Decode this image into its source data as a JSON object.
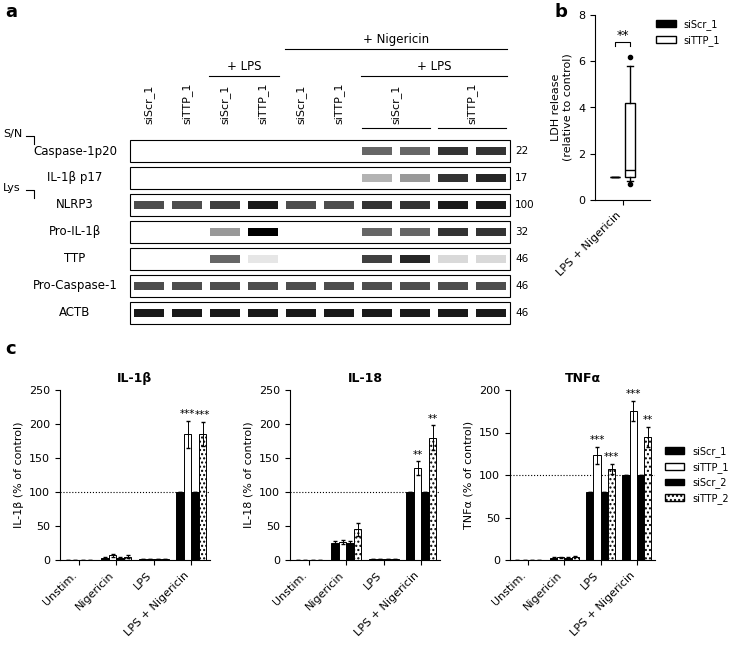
{
  "panel_labels": [
    "a",
    "b",
    "c"
  ],
  "blot": {
    "lane_labels": [
      {
        "text": "siScr_1",
        "lanes": [
          0
        ]
      },
      {
        "text": "siTTP_1",
        "lanes": [
          1
        ]
      },
      {
        "text": "siScr_1",
        "lanes": [
          2
        ]
      },
      {
        "text": "siTTP_1",
        "lanes": [
          3
        ]
      },
      {
        "text": "siScr_1",
        "lanes": [
          4
        ]
      },
      {
        "text": "siTTP_1",
        "lanes": [
          5
        ]
      },
      {
        "text": "siScr_1",
        "lanes": [
          6,
          7
        ]
      },
      {
        "text": "siTTP_1",
        "lanes": [
          8,
          9
        ]
      }
    ],
    "groups": [
      {
        "text": "+ LPS",
        "lanes": [
          2,
          3
        ]
      },
      {
        "text": "+ Nigericin",
        "lanes": [
          4,
          9
        ]
      },
      {
        "text": "+ LPS",
        "lanes": [
          6,
          9
        ]
      }
    ],
    "rows": [
      {
        "label": "Caspase-1p20",
        "size": 22,
        "section": "S/N",
        "bands": [
          0,
          0,
          0,
          0,
          0,
          0,
          0.6,
          0.6,
          0.8,
          0.8
        ]
      },
      {
        "label": "IL-1β p17",
        "size": 17,
        "section": "S/N",
        "bands": [
          0,
          0,
          0,
          0,
          0,
          0,
          0.3,
          0.4,
          0.8,
          0.85
        ]
      },
      {
        "label": "NLRP3",
        "size": 100,
        "section": "Lys",
        "bands": [
          0.7,
          0.7,
          0.75,
          0.9,
          0.7,
          0.7,
          0.8,
          0.8,
          0.9,
          0.9
        ]
      },
      {
        "label": "Pro-IL-1β",
        "size": 32,
        "section": "Lys",
        "bands": [
          0,
          0,
          0.4,
          1.0,
          0,
          0,
          0.6,
          0.6,
          0.8,
          0.8
        ]
      },
      {
        "label": "TTP",
        "size": 46,
        "section": "Lys",
        "bands": [
          0,
          0,
          0.6,
          0.1,
          0,
          0,
          0.75,
          0.85,
          0.15,
          0.15
        ]
      },
      {
        "label": "Pro-Caspase-1",
        "size": 46,
        "section": "Lys",
        "bands": [
          0.7,
          0.7,
          0.7,
          0.7,
          0.7,
          0.7,
          0.7,
          0.7,
          0.7,
          0.7
        ]
      },
      {
        "label": "ACTB",
        "size": 46,
        "section": "Lys",
        "bands": [
          0.9,
          0.9,
          0.9,
          0.9,
          0.9,
          0.9,
          0.9,
          0.9,
          0.9,
          0.9
        ]
      }
    ]
  },
  "chart_data": [
    {
      "type": "box",
      "categories": [
        "LPS + Nigericin"
      ],
      "y_label": "LDH release\n(relative to control)",
      "ylim": [
        0,
        8
      ],
      "yticks": [
        0,
        2,
        4,
        6,
        8
      ],
      "legend": "upper right",
      "series": [
        {
          "name": "siScr_1",
          "color": "#000000",
          "stats": {
            "whislo": 1,
            "q1": 1,
            "med": 1,
            "q3": 1,
            "whishi": 1,
            "fliers": []
          }
        },
        {
          "name": "siTTP_1",
          "color": "#ffffff",
          "stats": {
            "whislo": 0.8,
            "q1": 1.0,
            "med": 1.3,
            "q3": 4.2,
            "whishi": 5.8,
            "fliers": [
              6.2,
              0.7
            ]
          }
        }
      ],
      "annotations": [
        {
          "text": "**",
          "between": [
            "siScr_1",
            "siTTP_1"
          ]
        }
      ]
    },
    {
      "type": "bar",
      "title": "IL-1β",
      "y_label": "IL-1β (% of control)",
      "categories": [
        "Unstim.",
        "Nigericin",
        "LPS",
        "LPS + Nigericin"
      ],
      "ylim": [
        0,
        250
      ],
      "yticks": [
        0,
        50,
        100,
        150,
        200,
        250
      ],
      "reference_line": 100,
      "series": [
        {
          "name": "siScr_1",
          "color": "#000000",
          "values": [
            0,
            3,
            1,
            100
          ],
          "errors": [
            0,
            1,
            0,
            0
          ]
        },
        {
          "name": "siTTP_1",
          "color": "#ffffff",
          "values": [
            0,
            7,
            1,
            185
          ],
          "errors": [
            0,
            2,
            0,
            20
          ]
        },
        {
          "name": "siScr_2",
          "color": "#000000",
          "values": [
            0,
            3,
            1,
            100
          ],
          "errors": [
            0,
            1,
            0,
            0
          ]
        },
        {
          "name": "siTTP_2",
          "color": "#ffffff",
          "line_style": "dotted",
          "values": [
            0,
            5,
            1,
            185
          ],
          "errors": [
            0,
            2,
            0,
            18
          ]
        }
      ],
      "annotations": [
        {
          "category": "LPS + Nigericin",
          "series": "siTTP_1",
          "text": "***"
        },
        {
          "category": "LPS + Nigericin",
          "series": "siTTP_2",
          "text": "***"
        }
      ]
    },
    {
      "type": "bar",
      "title": "IL-18",
      "y_label": "IL-18 (% of control)",
      "categories": [
        "Unstim.",
        "Nigericin",
        "LPS",
        "LPS + Nigericin"
      ],
      "ylim": [
        0,
        250
      ],
      "yticks": [
        0,
        50,
        100,
        150,
        200,
        250
      ],
      "reference_line": 100,
      "series": [
        {
          "name": "siScr_1",
          "color": "#000000",
          "values": [
            0,
            25,
            1,
            100
          ],
          "errors": [
            0,
            3,
            0,
            0
          ]
        },
        {
          "name": "siTTP_1",
          "color": "#ffffff",
          "values": [
            0,
            27,
            1,
            135
          ],
          "errors": [
            0,
            3,
            0,
            10
          ]
        },
        {
          "name": "siScr_2",
          "color": "#000000",
          "values": [
            0,
            25,
            1,
            100
          ],
          "errors": [
            0,
            3,
            0,
            0
          ]
        },
        {
          "name": "siTTP_2",
          "color": "#ffffff",
          "line_style": "dotted",
          "values": [
            0,
            45,
            1,
            180
          ],
          "errors": [
            0,
            10,
            0,
            18
          ]
        }
      ],
      "annotations": [
        {
          "category": "LPS + Nigericin",
          "series": "siTTP_1",
          "text": "**"
        },
        {
          "category": "LPS + Nigericin",
          "series": "siTTP_2",
          "text": "**"
        }
      ]
    },
    {
      "type": "bar",
      "title": "TNFα",
      "y_label": "TNFα (% of control)",
      "categories": [
        "Unstim.",
        "Nigericin",
        "LPS",
        "LPS + Nigericin"
      ],
      "ylim": [
        0,
        200
      ],
      "yticks": [
        0,
        50,
        100,
        150,
        200
      ],
      "reference_line": 100,
      "legend": "right",
      "series": [
        {
          "name": "siScr_1",
          "color": "#000000",
          "values": [
            0,
            2,
            80,
            100
          ],
          "errors": [
            0,
            1,
            0,
            0
          ]
        },
        {
          "name": "siTTP_1",
          "color": "#ffffff",
          "values": [
            0,
            3,
            123,
            175
          ],
          "errors": [
            0,
            1,
            10,
            12
          ]
        },
        {
          "name": "siScr_2",
          "color": "#000000",
          "values": [
            0,
            2,
            80,
            100
          ],
          "errors": [
            0,
            1,
            0,
            0
          ]
        },
        {
          "name": "siTTP_2",
          "color": "#ffffff",
          "line_style": "dotted",
          "values": [
            0,
            4,
            107,
            145
          ],
          "errors": [
            0,
            1,
            6,
            12
          ]
        }
      ],
      "annotations": [
        {
          "category": "LPS",
          "series": "siTTP_1",
          "text": "***"
        },
        {
          "category": "LPS",
          "series": "siTTP_2",
          "text": "***"
        },
        {
          "category": "LPS + Nigericin",
          "series": "siTTP_1",
          "text": "***"
        },
        {
          "category": "LPS + Nigericin",
          "series": "siTTP_2",
          "text": "**"
        }
      ]
    }
  ]
}
